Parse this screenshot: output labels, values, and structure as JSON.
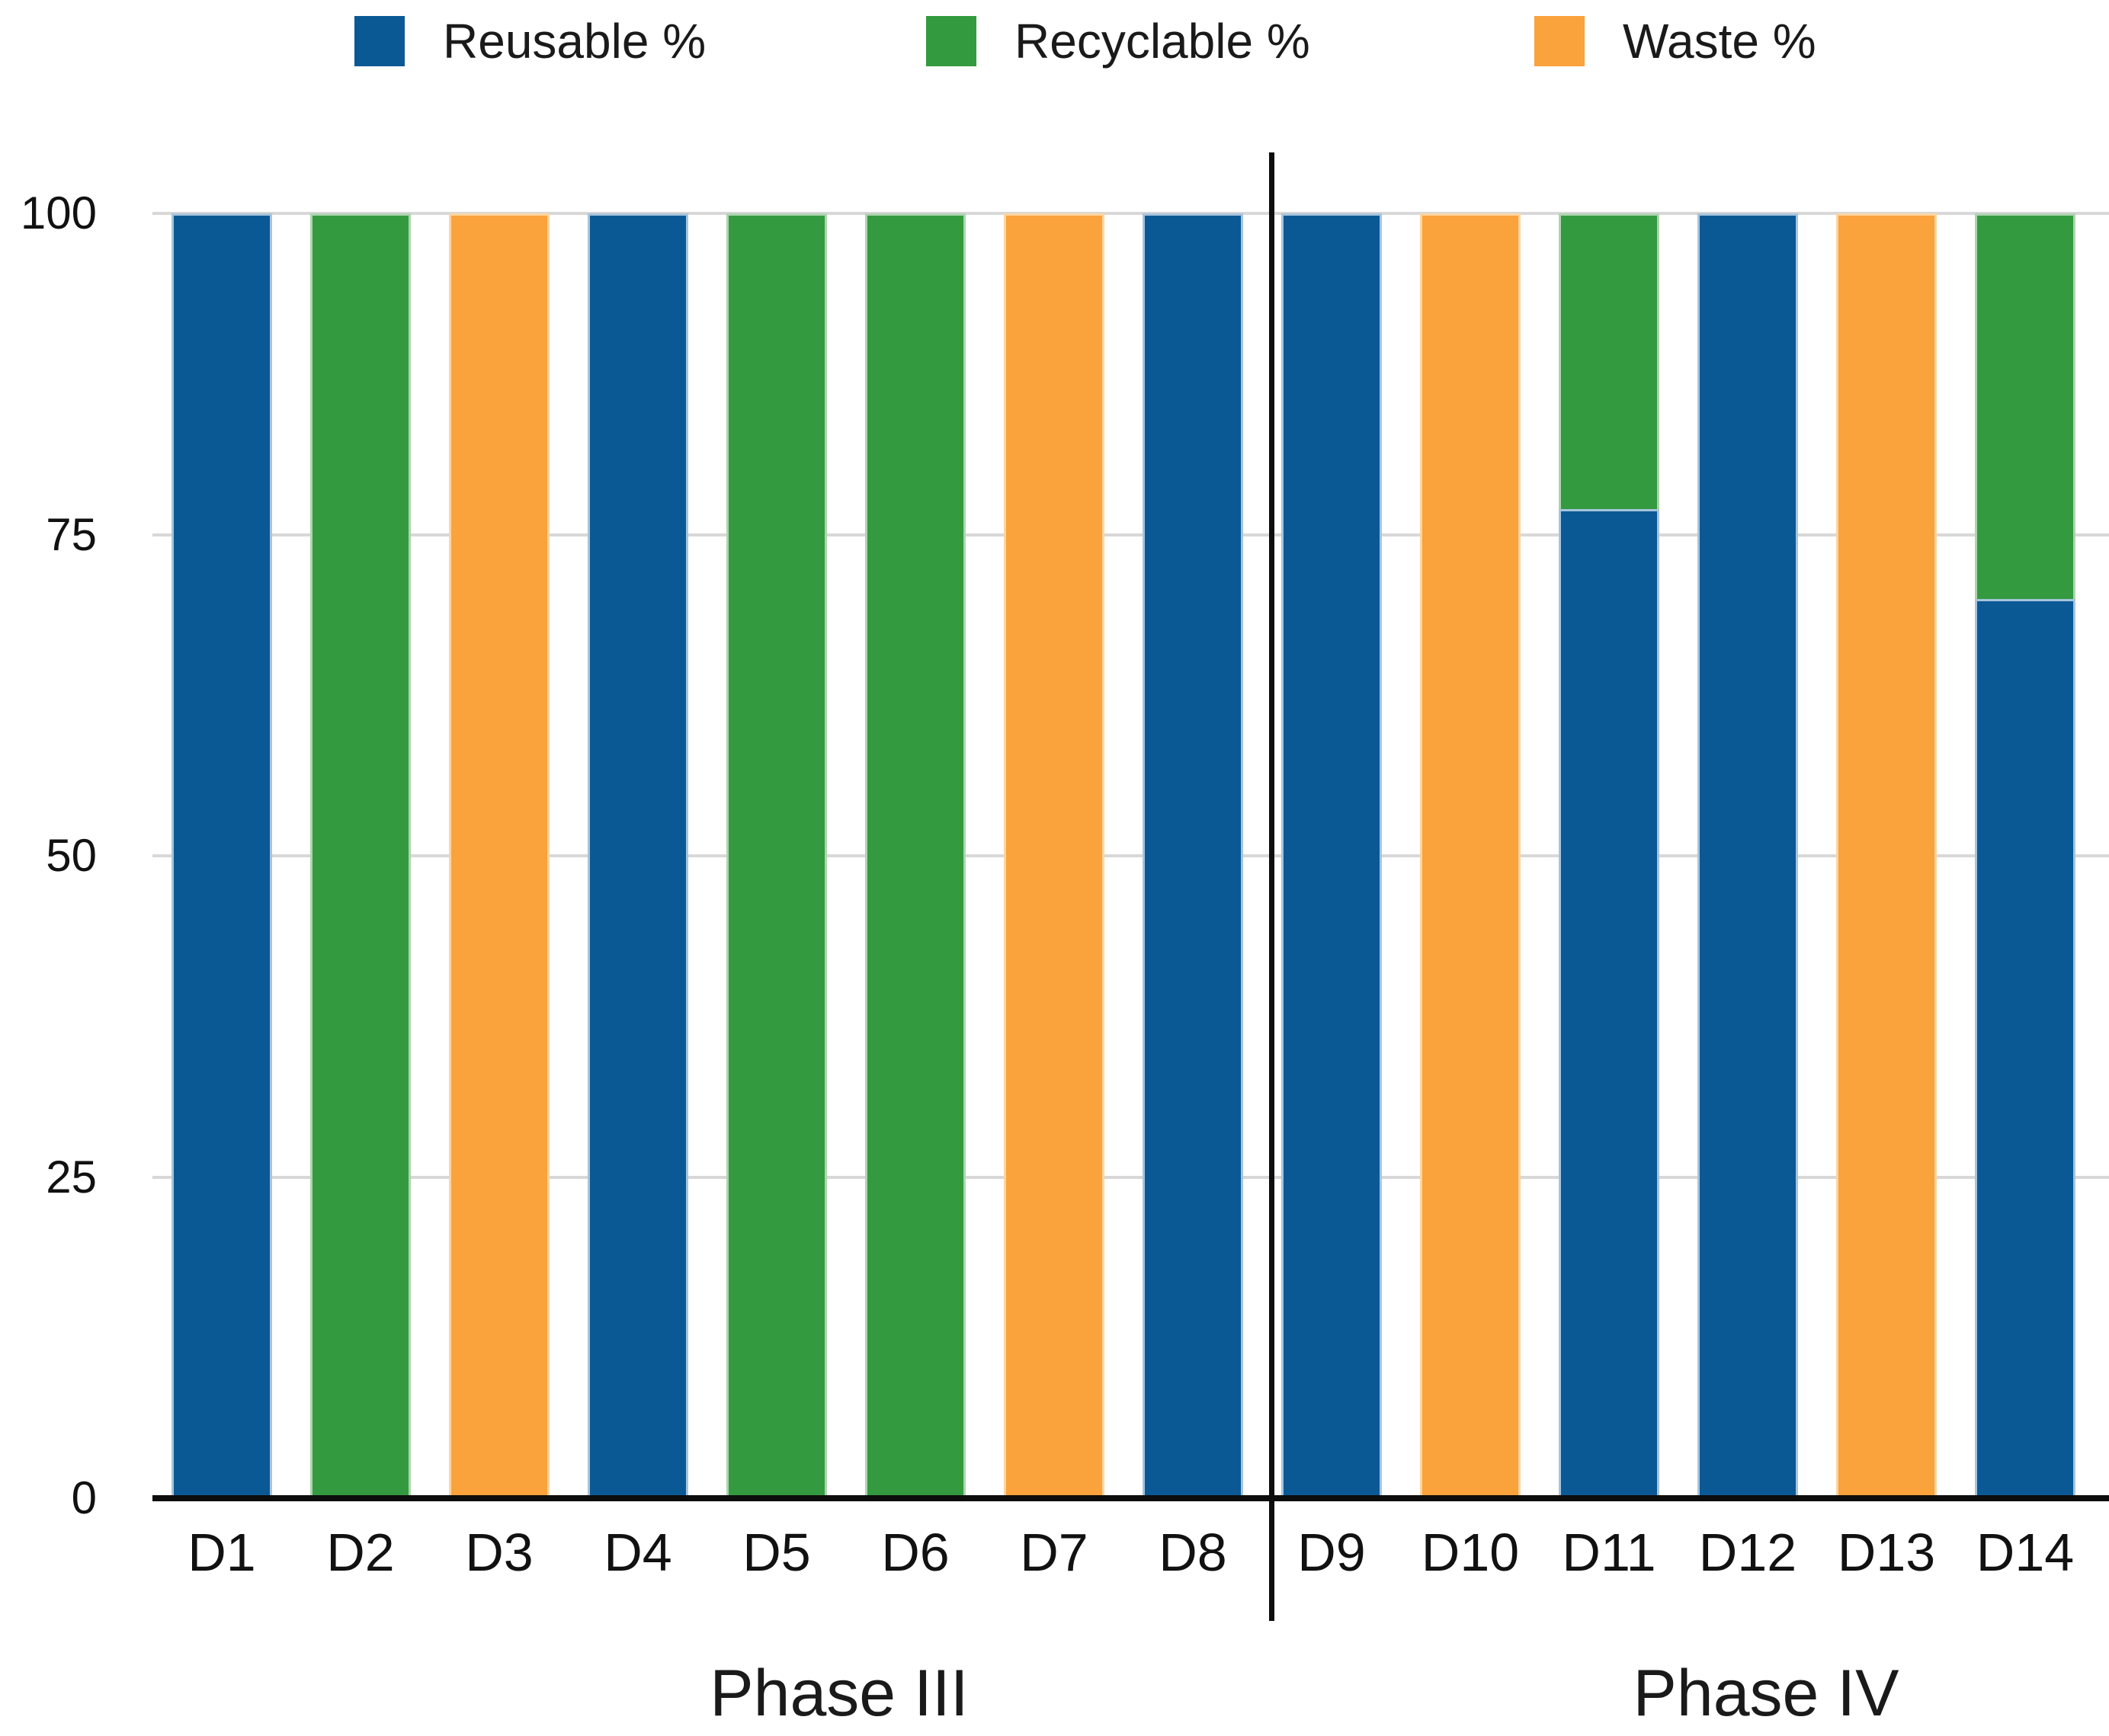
{
  "chart_data": {
    "type": "bar",
    "stacked": true,
    "title": "",
    "categories": [
      "D1",
      "D2",
      "D3",
      "D4",
      "D5",
      "D6",
      "D7",
      "D8",
      "D9",
      "D10",
      "D11",
      "D12",
      "D13",
      "D14"
    ],
    "series": [
      {
        "name": "Reusable %",
        "color": "#0B5994",
        "border_color": "#A7C4DD",
        "values": [
          100,
          0,
          0,
          100,
          0,
          0,
          0,
          100,
          100,
          0,
          77,
          100,
          0,
          70
        ]
      },
      {
        "name": "Recyclable %",
        "color": "#349A40",
        "border_color": "#AFD4B0",
        "values": [
          0,
          100,
          0,
          0,
          100,
          100,
          0,
          0,
          0,
          0,
          23,
          0,
          0,
          30
        ]
      },
      {
        "name": "Waste %",
        "color": "#FAA23C",
        "border_color": "#FCD5A1",
        "values": [
          0,
          0,
          100,
          0,
          0,
          0,
          100,
          0,
          0,
          100,
          0,
          0,
          100,
          0
        ]
      }
    ],
    "xlabel": "",
    "ylabel": "",
    "ylim": [
      0,
      100
    ],
    "yticks": [
      0,
      25,
      50,
      75,
      100
    ],
    "grid": true,
    "legend_position": "top",
    "group_labels": [
      {
        "label": "Phase III",
        "categories": [
          "D1",
          "D2",
          "D3",
          "D4",
          "D5",
          "D6",
          "D7",
          "D8"
        ]
      },
      {
        "label": "Phase IV",
        "categories": [
          "D9",
          "D10",
          "D11",
          "D12",
          "D13",
          "D14"
        ]
      }
    ],
    "divider_after_category": "D8",
    "grid_color": "#D8D8D8",
    "axis_color": "#0D0D0D"
  }
}
